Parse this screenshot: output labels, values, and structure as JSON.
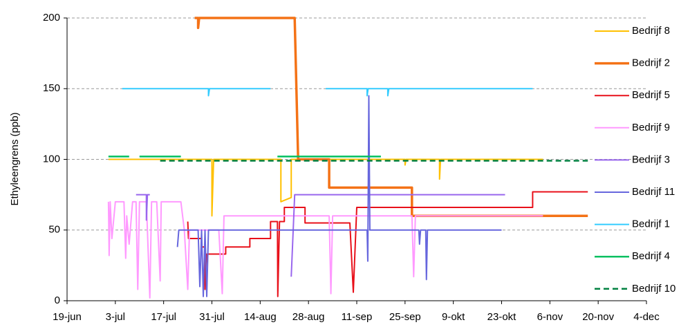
{
  "chart_data": {
    "type": "line",
    "ylabel": "Ethyleengrens (ppb)",
    "xlim": [
      0,
      168
    ],
    "xticks": [
      {
        "value": 0,
        "label": "19-jun"
      },
      {
        "value": 14,
        "label": "3-jul"
      },
      {
        "value": 28,
        "label": "17-jul"
      },
      {
        "value": 42,
        "label": "31-jul"
      },
      {
        "value": 56,
        "label": "14-aug"
      },
      {
        "value": 70,
        "label": "28-aug"
      },
      {
        "value": 84,
        "label": "11-sep"
      },
      {
        "value": 98,
        "label": "25-sep"
      },
      {
        "value": 112,
        "label": "9-okt"
      },
      {
        "value": 126,
        "label": "23-okt"
      },
      {
        "value": 140,
        "label": "6-nov"
      },
      {
        "value": 154,
        "label": "20-nov"
      },
      {
        "value": 168,
        "label": "4-dec"
      }
    ],
    "ylim": [
      0,
      200
    ],
    "yticks": [
      0,
      50,
      100,
      150,
      200
    ],
    "grid": true,
    "legend": "right",
    "series": [
      {
        "name": "Bedrijf 8",
        "color": "#ffc000",
        "width": 2,
        "x": [
          12,
          42,
          42,
          42.5,
          62,
          62,
          65,
          65,
          98,
          98,
          98.3,
          108,
          108,
          108.3,
          138
        ],
        "values": [
          100,
          100,
          60,
          100,
          100,
          70,
          73,
          100,
          100,
          96,
          100,
          100,
          86,
          100,
          100
        ]
      },
      {
        "name": "Bedrijf 2",
        "color": "#f47216",
        "width": 3.5,
        "x": [
          37,
          38,
          38,
          38.3,
          66,
          67,
          76,
          76,
          100,
          100,
          151
        ],
        "values": [
          200,
          200,
          193,
          200,
          200,
          100,
          100,
          80,
          80,
          60,
          60
        ]
      },
      {
        "name": "Bedrijf 5",
        "color": "#e8101a",
        "width": 2,
        "x": [
          35,
          35.2,
          39,
          39,
          40,
          40,
          40.5,
          46,
          46,
          53,
          53,
          59,
          59,
          61,
          61.1,
          61.6,
          63,
          63,
          69,
          69,
          82,
          83,
          84,
          135,
          135,
          151
        ],
        "values": [
          56,
          44,
          44,
          38,
          38,
          8,
          33,
          33,
          38,
          38,
          44,
          44,
          56,
          56,
          3,
          56,
          56,
          66,
          66,
          55,
          55,
          6,
          66,
          66,
          77,
          77
        ]
      },
      {
        "name": "Bedrijf 9",
        "color": "#ff99ff",
        "width": 2,
        "x": [
          12,
          12.2,
          12.5,
          13,
          14,
          16.5,
          17,
          17.3,
          18,
          19,
          20,
          20.5,
          21,
          23,
          24,
          24.5,
          26,
          27,
          27.3,
          33,
          34,
          35,
          35.5,
          36,
          44,
          45,
          45.5,
          56,
          76,
          76.5,
          77,
          100,
          100.5,
          101,
          138
        ],
        "values": [
          70,
          32,
          70,
          44,
          70,
          70,
          30,
          60,
          40,
          70,
          70,
          8,
          70,
          70,
          2,
          70,
          70,
          14,
          70,
          70,
          50,
          8,
          50,
          50,
          50,
          5,
          60,
          60,
          60,
          5,
          60,
          60,
          17,
          60,
          60
        ]
      },
      {
        "name": "Bedrijf 3",
        "color": "#9966ee",
        "width": 2,
        "x": [
          20,
          23,
          23,
          23.3,
          24,
          null,
          65,
          66,
          127
        ],
        "values": [
          75,
          75,
          57,
          75,
          75,
          null,
          17,
          75,
          75
        ]
      },
      {
        "name": "Bedrijf 11",
        "color": "#6666dd",
        "width": 2,
        "x": [
          32,
          32.4,
          38,
          38.5,
          39,
          39.5,
          40,
          40.5,
          41,
          87,
          87.2,
          87.5,
          87.8,
          88,
          102,
          102.2,
          102.5,
          104,
          104.2,
          104.5,
          126
        ],
        "values": [
          38,
          50,
          50,
          10,
          50,
          3,
          50,
          3,
          50,
          50,
          28,
          145,
          50,
          50,
          50,
          40,
          50,
          50,
          15,
          50,
          50
        ]
      },
      {
        "name": "Bedrijf 1",
        "color": "#33ccff",
        "width": 2,
        "x": [
          16,
          41,
          41,
          41.3,
          59,
          null,
          75,
          87,
          87,
          87.3,
          93,
          93,
          93.3,
          135
        ],
        "values": [
          150,
          150,
          145,
          150,
          150,
          null,
          150,
          150,
          145,
          150,
          150,
          145,
          150,
          150
        ]
      },
      {
        "name": "Bedrijf 4",
        "color": "#00c060",
        "width": 2.5,
        "x": [
          12,
          18,
          null,
          21,
          33,
          null,
          61,
          91
        ],
        "values": [
          102,
          102,
          null,
          102,
          102,
          null,
          102,
          102
        ]
      },
      {
        "name": "Bedrijf 10",
        "color": "#008040",
        "width": 2.5,
        "style": "dashed",
        "x": [
          27,
          151
        ],
        "values": [
          99,
          99
        ]
      }
    ]
  }
}
